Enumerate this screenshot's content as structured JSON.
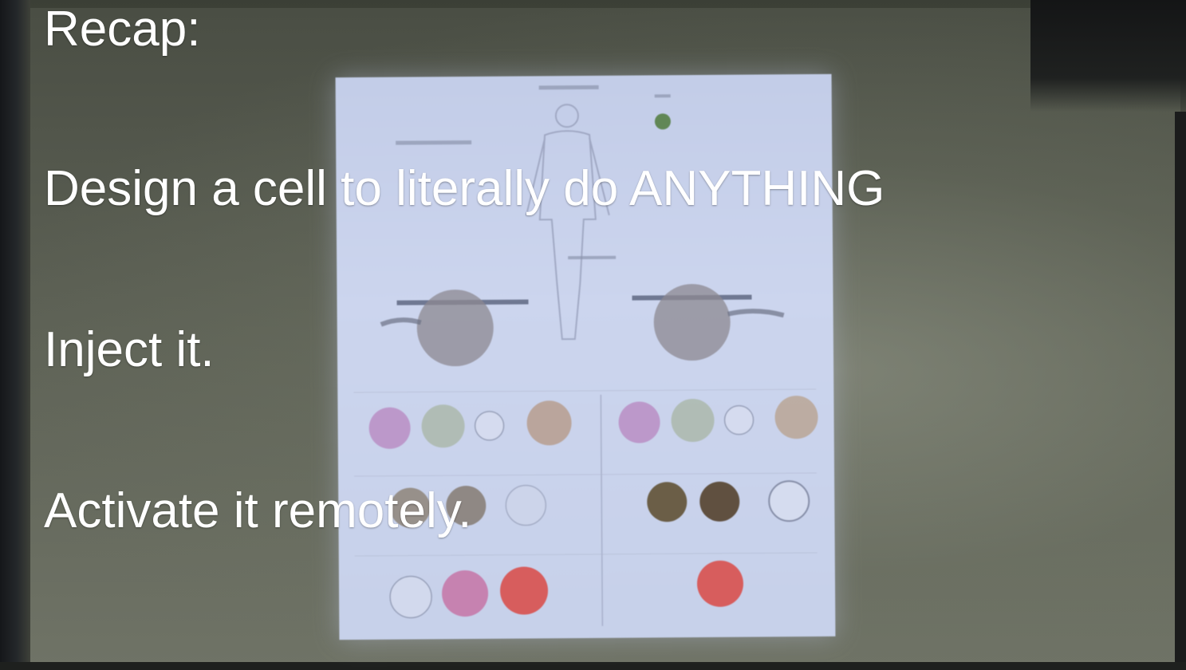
{
  "caption": {
    "title": "Recap:",
    "lines": [
      "Design a cell to literally do ANYTHING",
      "Inject it.",
      "Activate it remotely."
    ]
  },
  "colors": {
    "caption_text": "#ffffff",
    "slide_background": "#c7d1ea",
    "wall": "#5d6155"
  }
}
